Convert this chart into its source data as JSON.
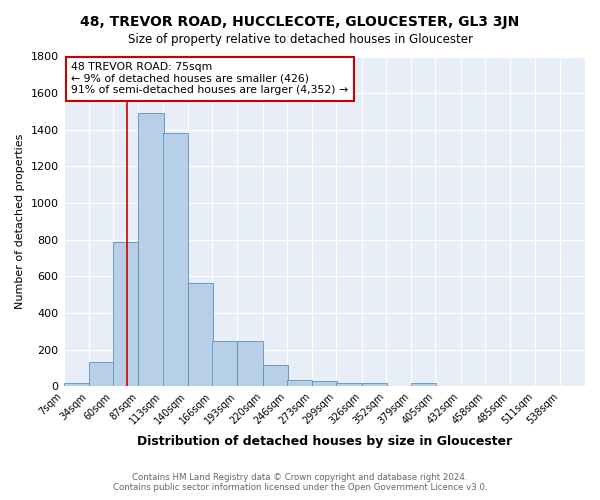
{
  "title": "48, TREVOR ROAD, HUCCLECOTE, GLOUCESTER, GL3 3JN",
  "subtitle": "Size of property relative to detached houses in Gloucester",
  "xlabel": "Distribution of detached houses by size in Gloucester",
  "ylabel": "Number of detached properties",
  "bin_labels": [
    "7sqm",
    "34sqm",
    "60sqm",
    "87sqm",
    "113sqm",
    "140sqm",
    "166sqm",
    "193sqm",
    "220sqm",
    "246sqm",
    "273sqm",
    "299sqm",
    "326sqm",
    "352sqm",
    "379sqm",
    "405sqm",
    "432sqm",
    "458sqm",
    "485sqm",
    "511sqm",
    "538sqm"
  ],
  "bin_edges": [
    7,
    34,
    60,
    87,
    113,
    140,
    166,
    193,
    220,
    246,
    273,
    299,
    326,
    352,
    379,
    405,
    432,
    458,
    485,
    511,
    538
  ],
  "bar_heights": [
    20,
    135,
    790,
    1490,
    1385,
    565,
    248,
    248,
    115,
    35,
    28,
    20,
    18,
    0,
    20,
    0,
    0,
    0,
    0,
    0
  ],
  "bar_color": "#b8cfe8",
  "bar_edge_color": "#5a8fc0",
  "background_color": "#e8eef8",
  "grid_color": "#ffffff",
  "vline_x": 75,
  "vline_color": "#cc0000",
  "annotation_line1": "48 TREVOR ROAD: 75sqm",
  "annotation_line2": "← 9% of detached houses are smaller (426)",
  "annotation_line3": "91% of semi-detached houses are larger (4,352) →",
  "annotation_box_color": "#ffffff",
  "annotation_box_edge_color": "#cc0000",
  "footer_line1": "Contains HM Land Registry data © Crown copyright and database right 2024.",
  "footer_line2": "Contains public sector information licensed under the Open Government Licence v3.0.",
  "ylim": [
    0,
    1800
  ],
  "yticks": [
    0,
    200,
    400,
    600,
    800,
    1000,
    1200,
    1400,
    1600,
    1800
  ]
}
